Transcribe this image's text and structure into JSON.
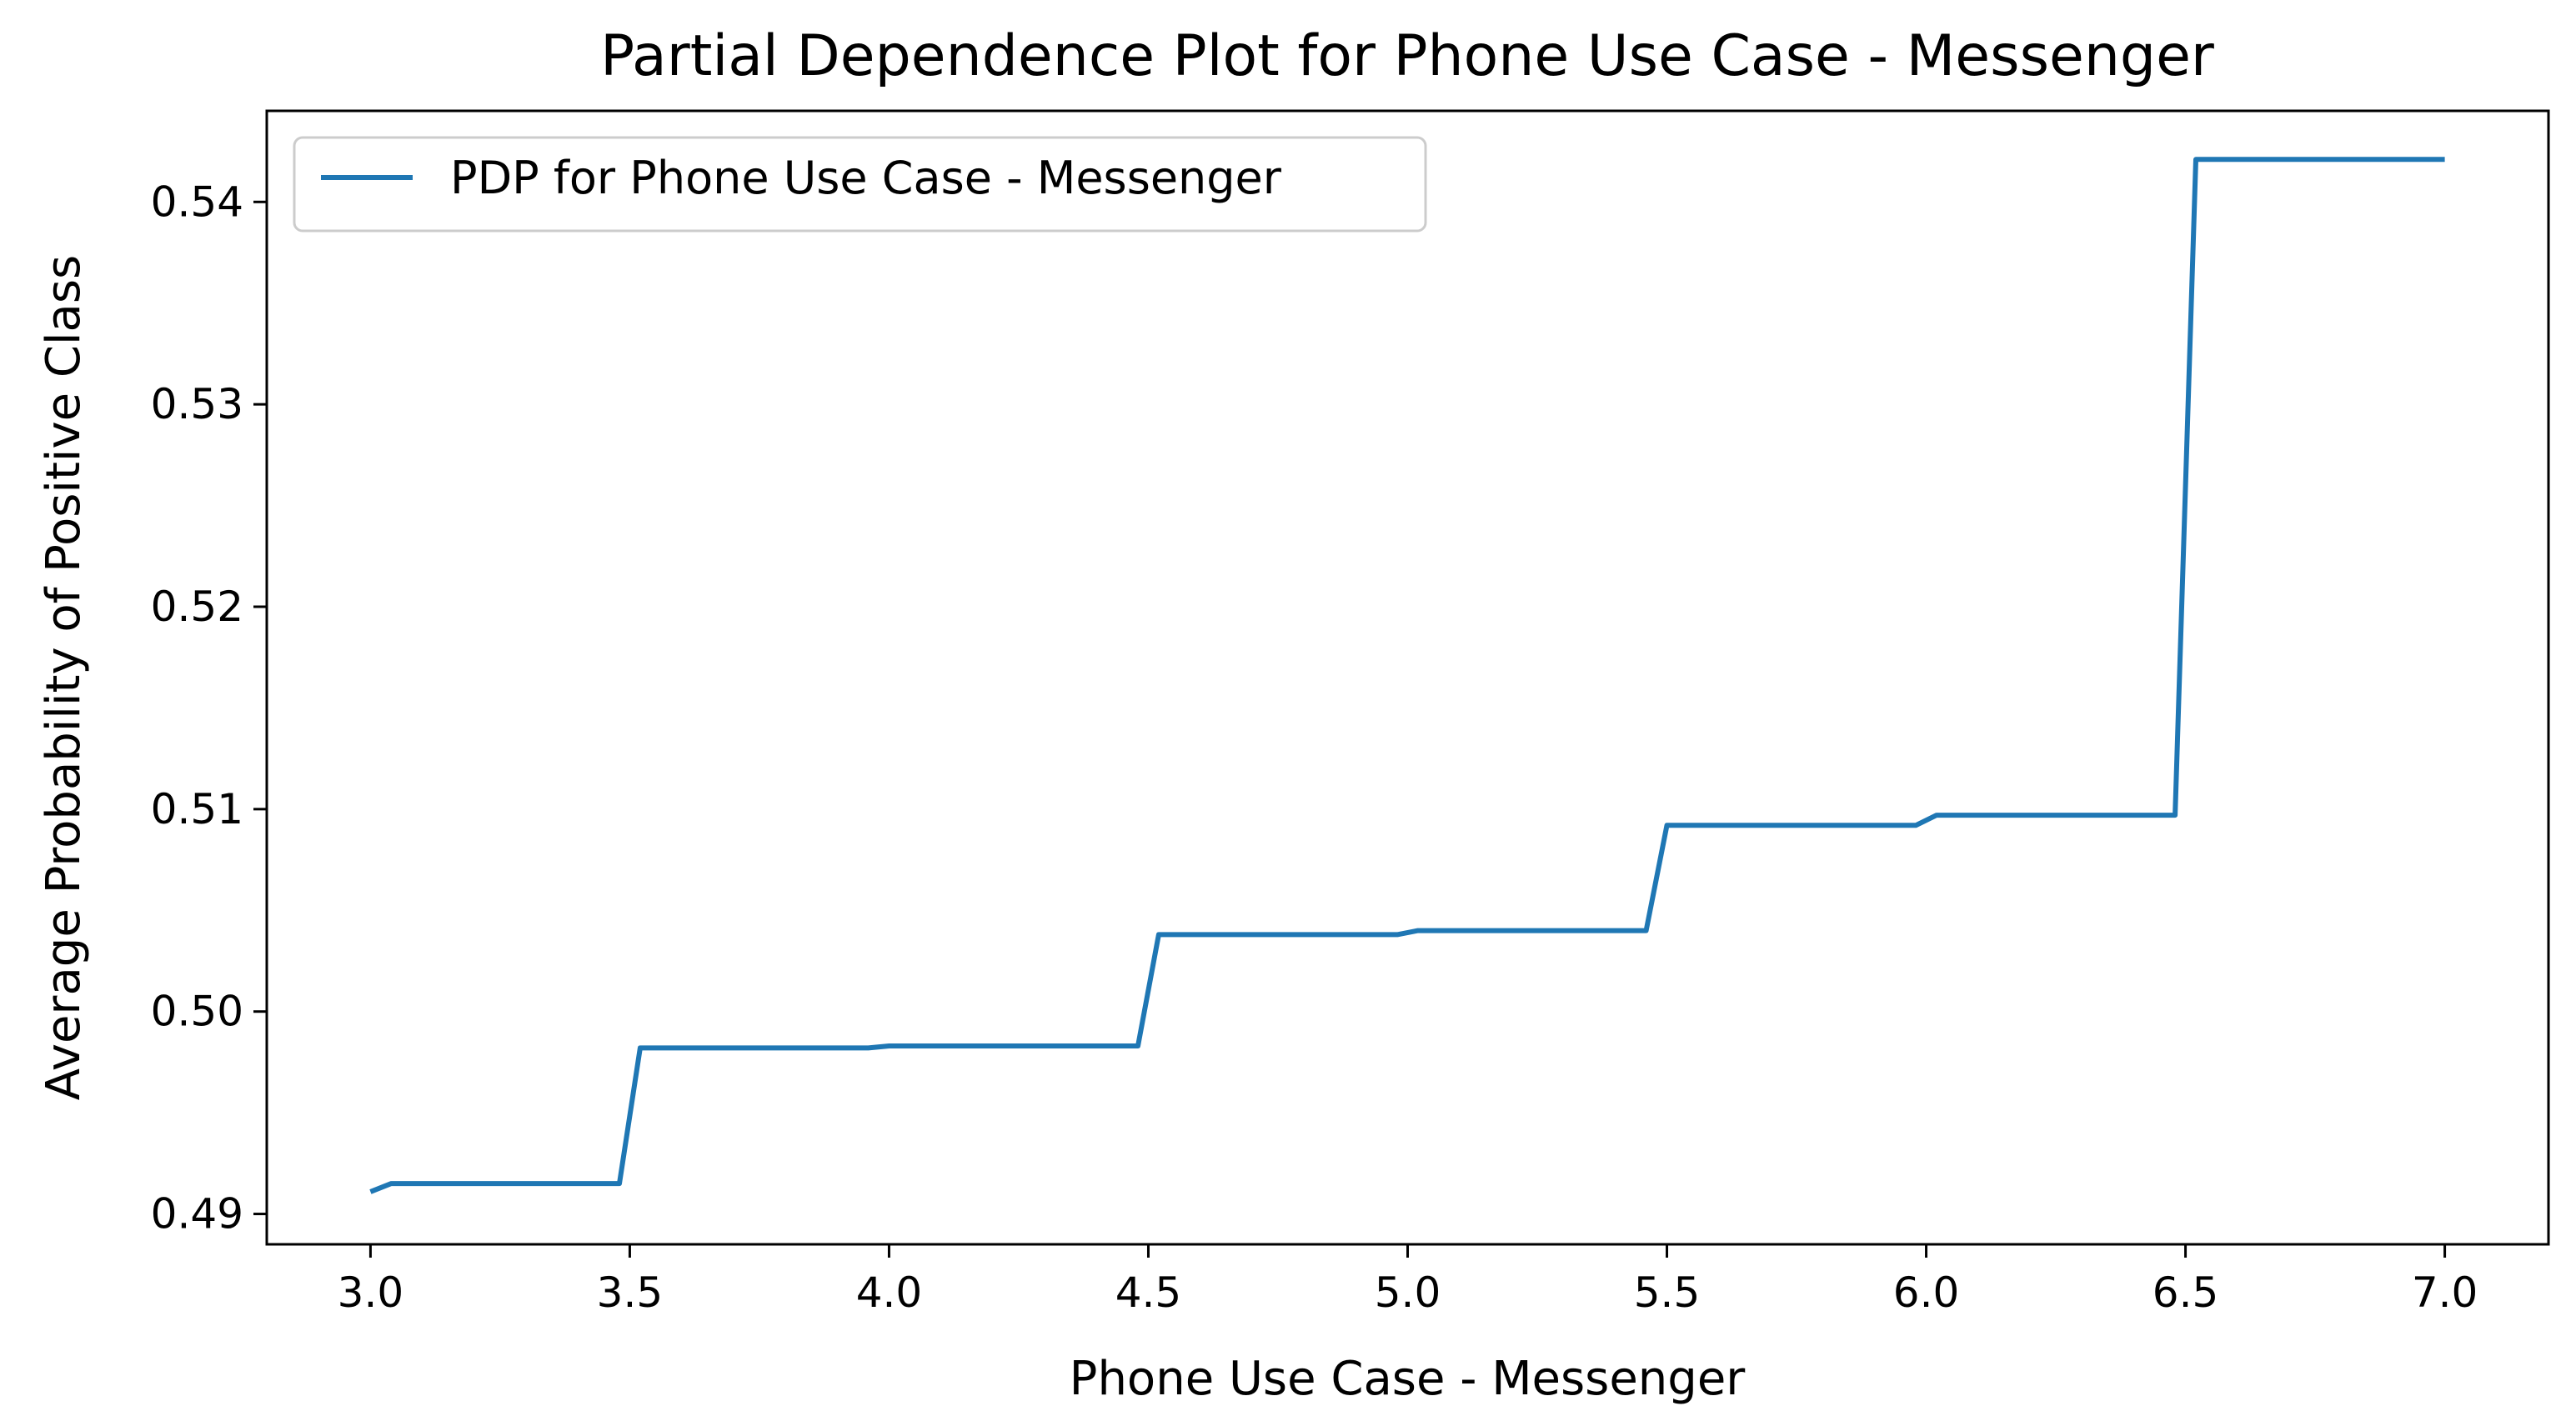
{
  "chart_data": {
    "type": "line",
    "title": "Partial Dependence Plot for Phone Use Case - Messenger",
    "xlabel": "Phone Use Case - Messenger",
    "ylabel": "Average Probability of Positive Class",
    "xlim": [
      2.8,
      7.2
    ],
    "ylim": [
      0.4885,
      0.5445
    ],
    "x_ticks": [
      3.0,
      3.5,
      4.0,
      4.5,
      5.0,
      5.5,
      6.0,
      6.5,
      7.0
    ],
    "x_tick_labels": [
      "3.0",
      "3.5",
      "4.0",
      "4.5",
      "5.0",
      "5.5",
      "6.0",
      "6.5",
      "7.0"
    ],
    "y_ticks": [
      0.49,
      0.5,
      0.51,
      0.52,
      0.53,
      0.54
    ],
    "y_tick_labels": [
      "0.49",
      "0.50",
      "0.51",
      "0.52",
      "0.53",
      "0.54"
    ],
    "grid": false,
    "legend_position": "top-left",
    "series": [
      {
        "name": "PDP for Phone Use Case - Messenger",
        "color": "#1f77b4",
        "x": [
          3.0,
          3.04,
          3.48,
          3.52,
          3.96,
          4.0,
          4.48,
          4.52,
          4.98,
          5.02,
          5.46,
          5.5,
          5.98,
          6.02,
          6.48,
          6.52,
          7.0
        ],
        "y": [
          0.4911,
          0.4915,
          0.4915,
          0.4982,
          0.4982,
          0.4983,
          0.4983,
          0.5038,
          0.5038,
          0.504,
          0.504,
          0.5092,
          0.5092,
          0.5097,
          0.5097,
          0.5421,
          0.5421
        ]
      }
    ]
  }
}
